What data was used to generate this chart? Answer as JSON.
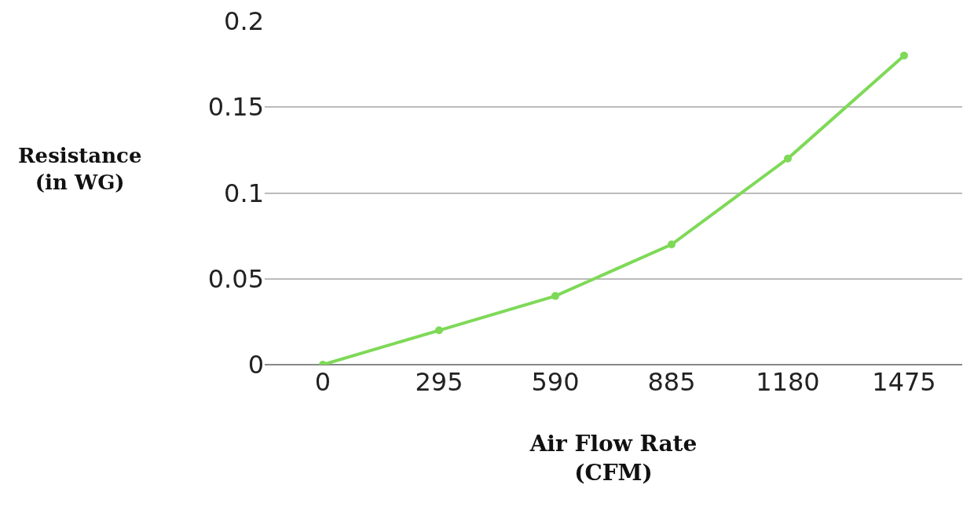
{
  "chart_data": {
    "type": "line",
    "xlabel": "Air Flow Rate\n(CFM)",
    "ylabel": "Resistance\n(in WG)",
    "categories": [
      "0",
      "295",
      "590",
      "885",
      "1180",
      "1475"
    ],
    "series": [
      {
        "color": "#7ed957",
        "values": [
          0,
          0.02,
          0.04,
          0.07,
          0.12,
          0.18
        ]
      }
    ],
    "ylim": [
      0,
      0.2
    ],
    "yticks": [
      0,
      0.05,
      0.1,
      0.15,
      0.2
    ],
    "grid": "y",
    "legend": false,
    "marker": "circle",
    "line_style": "solid"
  }
}
